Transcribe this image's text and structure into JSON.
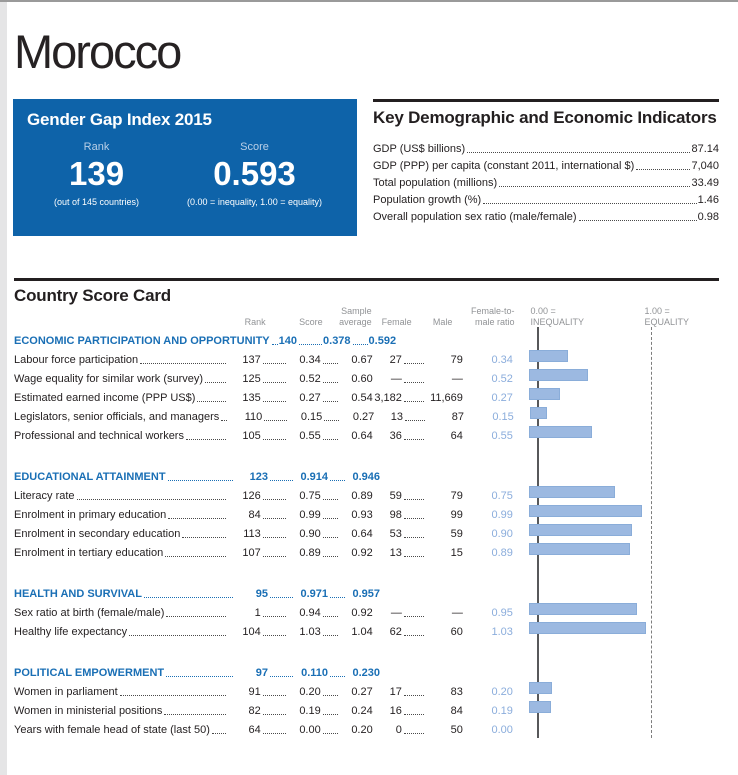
{
  "page": {
    "title": "Morocco"
  },
  "colors": {
    "accent_blue": "#0e63a9",
    "section_blue": "#1a6fb5",
    "ratio_text_blue": "#8baddc",
    "bar_fill": "#9cb9e1",
    "bar_border": "#8aadd9",
    "axis_line_solid": "#57585a",
    "axis_line_dashed": "#7d7d7d"
  },
  "index_box": {
    "title": "Gender Gap Index 2015",
    "rank_label": "Rank",
    "rank": "139",
    "rank_note": "(out of 145 countries)",
    "score_label": "Score",
    "score": "0.593",
    "score_note": "(0.00 = inequality, 1.00 = equality)"
  },
  "indicators": {
    "title": "Key Demographic and Economic Indicators",
    "rows": [
      {
        "label": "GDP (US$ billions)",
        "value": "87.14"
      },
      {
        "label": "GDP (PPP) per capita (constant 2011, international $)",
        "value": "7,040"
      },
      {
        "label": "Total population (millions)",
        "value": "33.49"
      },
      {
        "label": "Population growth (%)",
        "value": "1.46"
      },
      {
        "label": "Overall population sex ratio (male/female)",
        "value": "0.98"
      }
    ]
  },
  "scorecard": {
    "title": "Country Score Card",
    "columns": {
      "rank": "Rank",
      "score": "Score",
      "sample_average": [
        "Sample",
        "average"
      ],
      "female": "Female",
      "male": "Male",
      "ratio": [
        "Female-to-",
        "male ratio"
      ]
    },
    "axis": {
      "left": [
        "0.00 =",
        "INEQUALITY"
      ],
      "right": [
        "1.00 =",
        "EQUALITY"
      ]
    },
    "sections": [
      {
        "name": "ECONOMIC PARTICIPATION AND OPPORTUNITY",
        "rank": "140",
        "score": "0.378",
        "average": "0.592",
        "rows": [
          {
            "label": "Labour force participation",
            "rank": "137",
            "score": "0.34",
            "average": "0.67",
            "female": "27",
            "male": "79",
            "ratio": "0.34",
            "ratio_value": 0.34
          },
          {
            "label": "Wage equality for similar work (survey)",
            "rank": "125",
            "score": "0.52",
            "average": "0.60",
            "female": "—",
            "male": "—",
            "ratio": "0.52",
            "ratio_value": 0.52
          },
          {
            "label": "Estimated earned income (PPP US$)",
            "rank": "135",
            "score": "0.27",
            "average": "0.54",
            "female": "3,182",
            "male": "11,669",
            "ratio": "0.27",
            "ratio_value": 0.27
          },
          {
            "label": "Legislators, senior officials, and managers",
            "rank": "110",
            "score": "0.15",
            "average": "0.27",
            "female": "13",
            "male": "87",
            "ratio": "0.15",
            "ratio_value": 0.15
          },
          {
            "label": "Professional and technical workers",
            "rank": "105",
            "score": "0.55",
            "average": "0.64",
            "female": "36",
            "male": "64",
            "ratio": "0.55",
            "ratio_value": 0.55
          }
        ]
      },
      {
        "name": "EDUCATIONAL ATTAINMENT",
        "rank": "123",
        "score": "0.914",
        "average": "0.946",
        "rows": [
          {
            "label": "Literacy rate",
            "rank": "126",
            "score": "0.75",
            "average": "0.89",
            "female": "59",
            "male": "79",
            "ratio": "0.75",
            "ratio_value": 0.75
          },
          {
            "label": "Enrolment in primary education",
            "rank": "84",
            "score": "0.99",
            "average": "0.93",
            "female": "98",
            "male": "99",
            "ratio": "0.99",
            "ratio_value": 0.99
          },
          {
            "label": "Enrolment in secondary education",
            "rank": "113",
            "score": "0.90",
            "average": "0.64",
            "female": "53",
            "male": "59",
            "ratio": "0.90",
            "ratio_value": 0.9
          },
          {
            "label": "Enrolment in tertiary education",
            "rank": "107",
            "score": "0.89",
            "average": "0.92",
            "female": "13",
            "male": "15",
            "ratio": "0.89",
            "ratio_value": 0.89
          }
        ]
      },
      {
        "name": "HEALTH AND SURVIVAL",
        "rank": "95",
        "score": "0.971",
        "average": "0.957",
        "rows": [
          {
            "label": "Sex ratio at birth (female/male)",
            "rank": "1",
            "score": "0.94",
            "average": "0.92",
            "female": "—",
            "male": "—",
            "ratio": "0.95",
            "ratio_value": 0.95
          },
          {
            "label": "Healthy life expectancy",
            "rank": "104",
            "score": "1.03",
            "average": "1.04",
            "female": "62",
            "male": "60",
            "ratio": "1.03",
            "ratio_value": 1.03
          }
        ]
      },
      {
        "name": "POLITICAL EMPOWERMENT",
        "rank": "97",
        "score": "0.110",
        "average": "0.230",
        "rows": [
          {
            "label": "Women in parliament",
            "rank": "91",
            "score": "0.20",
            "average": "0.27",
            "female": "17",
            "male": "83",
            "ratio": "0.20",
            "ratio_value": 0.2
          },
          {
            "label": "Women in ministerial positions",
            "rank": "82",
            "score": "0.19",
            "average": "0.24",
            "female": "16",
            "male": "84",
            "ratio": "0.19",
            "ratio_value": 0.19
          },
          {
            "label": "Years with female head of state (last 50)",
            "rank": "64",
            "score": "0.00",
            "average": "0.20",
            "female": "0",
            "male": "50",
            "ratio": "0.00",
            "ratio_value": 0.0
          }
        ]
      }
    ]
  },
  "chart_data": {
    "type": "bar",
    "title": "Female-to-male ratio by indicator",
    "xlabel": "Female-to-male ratio",
    "xlim": [
      0.0,
      1.0
    ],
    "annotations": [
      "0.00 = INEQUALITY",
      "1.00 = EQUALITY"
    ],
    "categories": [
      "Labour force participation",
      "Wage equality for similar work (survey)",
      "Estimated earned income (PPP US$)",
      "Legislators, senior officials, and managers",
      "Professional and technical workers",
      "Literacy rate",
      "Enrolment in primary education",
      "Enrolment in secondary education",
      "Enrolment in tertiary education",
      "Sex ratio at birth (female/male)",
      "Healthy life expectancy",
      "Women in parliament",
      "Women in ministerial positions",
      "Years with female head of state (last 50)"
    ],
    "values": [
      0.34,
      0.52,
      0.27,
      0.15,
      0.55,
      0.75,
      0.99,
      0.9,
      0.89,
      0.95,
      1.03,
      0.2,
      0.19,
      0.0
    ]
  }
}
